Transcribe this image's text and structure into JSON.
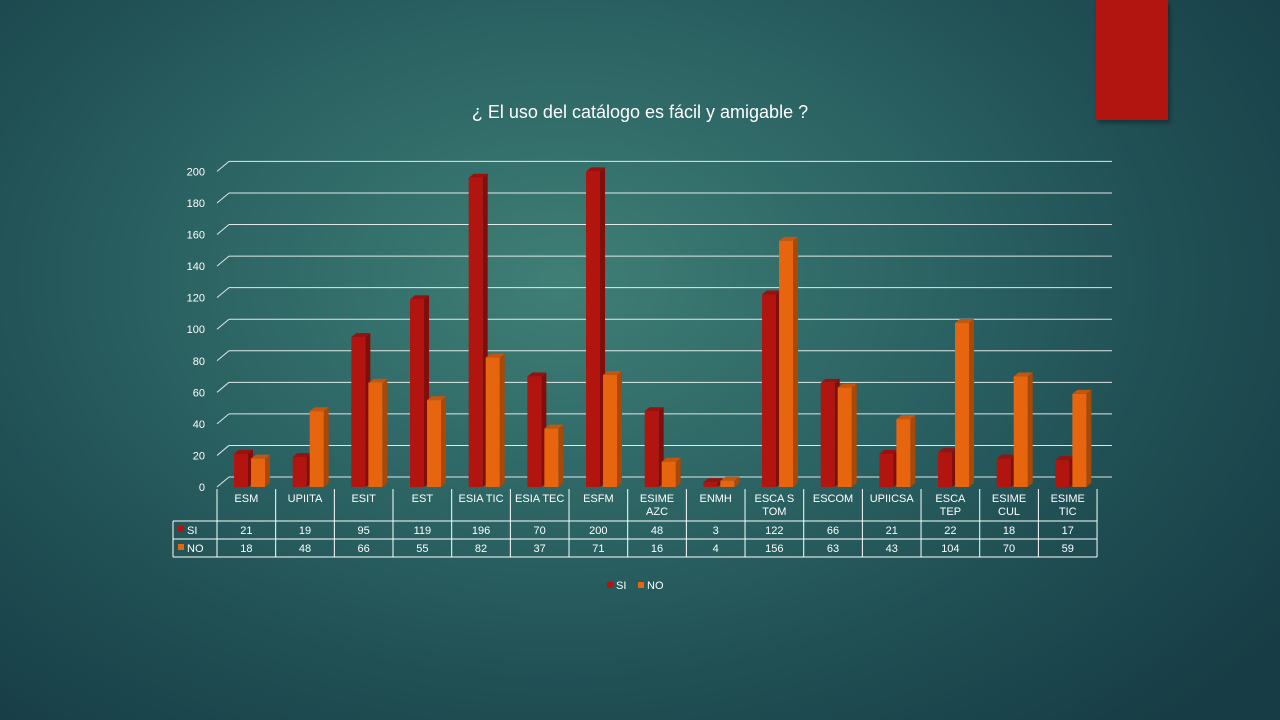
{
  "colors": {
    "si": "#b2140f",
    "no": "#e8650f",
    "accent": "#b2140f",
    "grid": "#ffffff"
  },
  "chart_data": {
    "type": "bar",
    "title": "¿ El uso del catálogo es fácil y amigable ?",
    "categories": [
      "ESM",
      "UPIITA",
      "ESIT",
      "EST",
      "ESIA TIC",
      "ESIA TEC",
      "ESFM",
      "ESIME AZC",
      "ENMH",
      "ESCA S TOM",
      "ESCOM",
      "UPIICSA",
      "ESCA TEP",
      "ESIME CUL",
      "ESIME TIC"
    ],
    "category_lines": [
      [
        "ESM"
      ],
      [
        "UPIITA"
      ],
      [
        "ESIT"
      ],
      [
        "EST"
      ],
      [
        "ESIA TIC"
      ],
      [
        "ESIA TEC"
      ],
      [
        "ESFM"
      ],
      [
        "ESIME",
        "AZC"
      ],
      [
        "ENMH"
      ],
      [
        "ESCA S",
        "TOM"
      ],
      [
        "ESCOM"
      ],
      [
        "UPIICSA"
      ],
      [
        "ESCA",
        "TEP"
      ],
      [
        "ESIME",
        "CUL"
      ],
      [
        "ESIME",
        "TIC"
      ]
    ],
    "series": [
      {
        "name": "SI",
        "values": [
          21,
          19,
          95,
          119,
          196,
          70,
          200,
          48,
          3,
          122,
          66,
          21,
          22,
          18,
          17
        ]
      },
      {
        "name": "NO",
        "values": [
          18,
          48,
          66,
          55,
          82,
          37,
          71,
          16,
          4,
          156,
          63,
          43,
          104,
          70,
          59
        ]
      }
    ],
    "y_ticks": [
      "0",
      "20",
      "40",
      "60",
      "80",
      "100",
      "120",
      "140",
      "160",
      "180",
      "200"
    ],
    "ylim": [
      0,
      200
    ],
    "grid": true,
    "legend": "bottom",
    "data_table": true
  }
}
